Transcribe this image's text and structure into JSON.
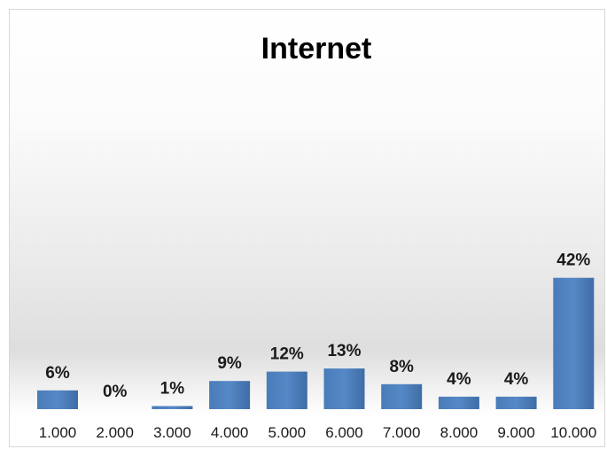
{
  "chart_data": {
    "type": "bar",
    "title": "Internet",
    "categories": [
      "1.000",
      "2.000",
      "3.000",
      "4.000",
      "5.000",
      "6.000",
      "7.000",
      "8.000",
      "9.000",
      "10.000"
    ],
    "values": [
      6,
      0,
      1,
      9,
      12,
      13,
      8,
      4,
      4,
      42
    ],
    "data_labels": [
      "6%",
      "0%",
      "1%",
      "9%",
      "12%",
      "13%",
      "8%",
      "4%",
      "4%",
      "42%"
    ],
    "ylim": [
      0,
      50
    ],
    "grid": false,
    "legend": "none",
    "xlabel": "",
    "ylabel": ""
  },
  "colors": {
    "bar": "#4f81bd",
    "bar_dark": "#3f6da6"
  }
}
